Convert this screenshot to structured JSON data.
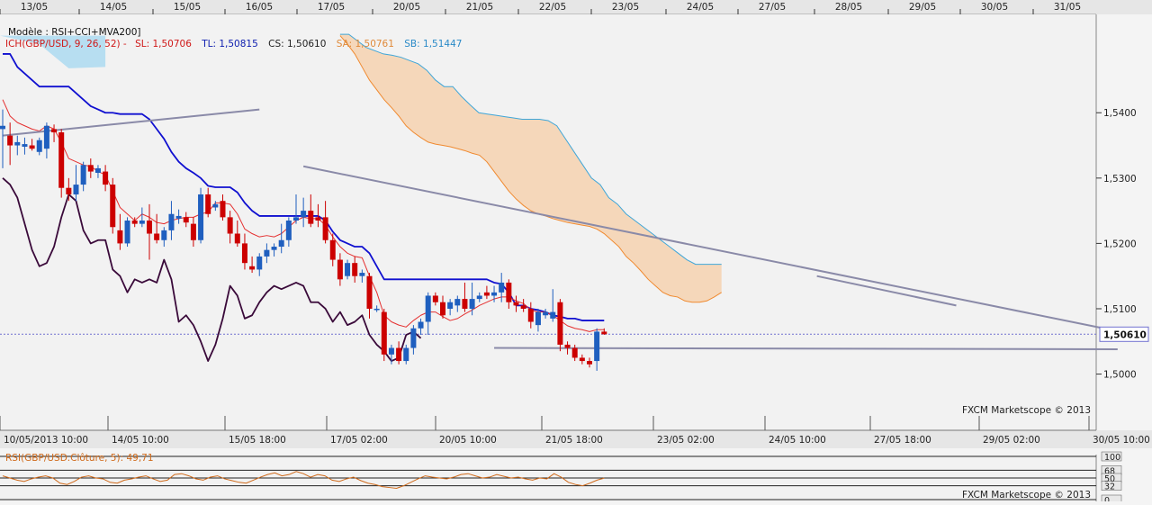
{
  "top_dates": [
    "13/05",
    "14/05",
    "15/05",
    "16/05",
    "17/05",
    "20/05",
    "21/05",
    "22/05",
    "23/05",
    "24/05",
    "27/05",
    "28/05",
    "29/05",
    "30/05",
    "31/05"
  ],
  "legend": {
    "model": "Modèle : RSI+CCI+MVA200]",
    "ich_label": "ICH(GBP/USD, 9, 26, 52) -",
    "sl": "SL: 1,50706",
    "tl": "TL: 1,50815",
    "cs": "CS: 1,50610",
    "sa": "SA: 1,50761",
    "sb": "SB: 1,51447"
  },
  "price_axis_labels": [
    "1,5400",
    "1,5300",
    "1,5200",
    "1,5100",
    "1,5000"
  ],
  "current_price_label": "1,50610",
  "bottom_dates": [
    "10/05/2013 10:00",
    "14/05 10:00",
    "15/05 18:00",
    "17/05 02:00",
    "20/05 10:00",
    "21/05 18:00",
    "23/05 02:00",
    "24/05 10:00",
    "27/05 18:00",
    "29/05 02:00",
    "30/05 10:00"
  ],
  "watermark": "FXCM Marketscope © 2013",
  "rsi_panel": {
    "label": "RSI(GBP/USD.Clôture, 5): 49,71",
    "axis_labels": [
      "100",
      "68",
      "50",
      "32",
      "0"
    ],
    "watermark": "FXCM Marketscope © 2013"
  },
  "colors": {
    "bull": "#1f5fbf",
    "bear": "#cc0000",
    "tenkan": "#e53030",
    "kijun": "#1010d0",
    "chikou": "#3a0a3a",
    "cloud": "#f5d4b4",
    "senkou_b": "#3fa6d8",
    "senkou_a": "#f08a30",
    "trend": "#8a8aa8",
    "rsi": "#d06a1a"
  },
  "chart_data": {
    "type": "candlestick",
    "symbol": "GBP/USD",
    "ylim": [
      1.4925,
      1.5545
    ],
    "y_ticks": [
      1.5,
      1.51,
      1.52,
      1.53,
      1.54
    ],
    "current_price": 1.5061,
    "candles": [
      {
        "o": 1.5375,
        "h": 1.5405,
        "l": 1.5315,
        "c": 1.538
      },
      {
        "o": 1.5365,
        "h": 1.5385,
        "l": 1.532,
        "c": 1.535
      },
      {
        "o": 1.535,
        "h": 1.5365,
        "l": 1.5335,
        "c": 1.5355
      },
      {
        "o": 1.5348,
        "h": 1.5362,
        "l": 1.5336,
        "c": 1.5352
      },
      {
        "o": 1.535,
        "h": 1.536,
        "l": 1.5342,
        "c": 1.5345
      },
      {
        "o": 1.534,
        "h": 1.5362,
        "l": 1.5335,
        "c": 1.5358
      },
      {
        "o": 1.5345,
        "h": 1.5385,
        "l": 1.533,
        "c": 1.538
      },
      {
        "o": 1.5375,
        "h": 1.5382,
        "l": 1.5355,
        "c": 1.537
      },
      {
        "o": 1.537,
        "h": 1.5375,
        "l": 1.527,
        "c": 1.5285
      },
      {
        "o": 1.5285,
        "h": 1.53,
        "l": 1.5265,
        "c": 1.5275
      },
      {
        "o": 1.5275,
        "h": 1.532,
        "l": 1.5265,
        "c": 1.529
      },
      {
        "o": 1.529,
        "h": 1.5325,
        "l": 1.528,
        "c": 1.532
      },
      {
        "o": 1.532,
        "h": 1.533,
        "l": 1.53,
        "c": 1.531
      },
      {
        "o": 1.5308,
        "h": 1.532,
        "l": 1.53,
        "c": 1.5315
      },
      {
        "o": 1.531,
        "h": 1.532,
        "l": 1.528,
        "c": 1.529
      },
      {
        "o": 1.529,
        "h": 1.53,
        "l": 1.5215,
        "c": 1.5225
      },
      {
        "o": 1.522,
        "h": 1.5245,
        "l": 1.519,
        "c": 1.52
      },
      {
        "o": 1.52,
        "h": 1.524,
        "l": 1.5195,
        "c": 1.5235
      },
      {
        "o": 1.5235,
        "h": 1.524,
        "l": 1.5225,
        "c": 1.523
      },
      {
        "o": 1.523,
        "h": 1.5255,
        "l": 1.5225,
        "c": 1.5235
      },
      {
        "o": 1.5235,
        "h": 1.526,
        "l": 1.5175,
        "c": 1.5215
      },
      {
        "o": 1.5215,
        "h": 1.5245,
        "l": 1.52,
        "c": 1.5205
      },
      {
        "o": 1.5205,
        "h": 1.5225,
        "l": 1.5195,
        "c": 1.522
      },
      {
        "o": 1.522,
        "h": 1.5265,
        "l": 1.5205,
        "c": 1.5245
      },
      {
        "o": 1.5238,
        "h": 1.5252,
        "l": 1.523,
        "c": 1.5242
      },
      {
        "o": 1.524,
        "h": 1.5248,
        "l": 1.5225,
        "c": 1.5232
      },
      {
        "o": 1.523,
        "h": 1.524,
        "l": 1.5195,
        "c": 1.5205
      },
      {
        "o": 1.5205,
        "h": 1.5285,
        "l": 1.52,
        "c": 1.5275
      },
      {
        "o": 1.5275,
        "h": 1.5285,
        "l": 1.524,
        "c": 1.5245
      },
      {
        "o": 1.5255,
        "h": 1.5265,
        "l": 1.525,
        "c": 1.526
      },
      {
        "o": 1.5265,
        "h": 1.5275,
        "l": 1.5235,
        "c": 1.524
      },
      {
        "o": 1.524,
        "h": 1.525,
        "l": 1.52,
        "c": 1.5215
      },
      {
        "o": 1.5215,
        "h": 1.5235,
        "l": 1.5195,
        "c": 1.52
      },
      {
        "o": 1.52,
        "h": 1.5215,
        "l": 1.516,
        "c": 1.517
      },
      {
        "o": 1.5165,
        "h": 1.518,
        "l": 1.5155,
        "c": 1.516
      },
      {
        "o": 1.516,
        "h": 1.5185,
        "l": 1.515,
        "c": 1.518
      },
      {
        "o": 1.518,
        "h": 1.52,
        "l": 1.517,
        "c": 1.519
      },
      {
        "o": 1.519,
        "h": 1.52,
        "l": 1.518,
        "c": 1.5195
      },
      {
        "o": 1.5195,
        "h": 1.523,
        "l": 1.5185,
        "c": 1.5205
      },
      {
        "o": 1.5205,
        "h": 1.524,
        "l": 1.5195,
        "c": 1.5235
      },
      {
        "o": 1.5235,
        "h": 1.5275,
        "l": 1.523,
        "c": 1.524
      },
      {
        "o": 1.524,
        "h": 1.527,
        "l": 1.5225,
        "c": 1.525
      },
      {
        "o": 1.525,
        "h": 1.5275,
        "l": 1.5225,
        "c": 1.523
      },
      {
        "o": 1.524,
        "h": 1.526,
        "l": 1.5225,
        "c": 1.5235
      },
      {
        "o": 1.524,
        "h": 1.5265,
        "l": 1.52,
        "c": 1.5205
      },
      {
        "o": 1.5205,
        "h": 1.5215,
        "l": 1.5165,
        "c": 1.5175
      },
      {
        "o": 1.5175,
        "h": 1.5185,
        "l": 1.5135,
        "c": 1.5145
      },
      {
        "o": 1.515,
        "h": 1.5175,
        "l": 1.5145,
        "c": 1.517
      },
      {
        "o": 1.517,
        "h": 1.518,
        "l": 1.514,
        "c": 1.515
      },
      {
        "o": 1.515,
        "h": 1.516,
        "l": 1.514,
        "c": 1.5155
      },
      {
        "o": 1.515,
        "h": 1.5155,
        "l": 1.5085,
        "c": 1.51
      },
      {
        "o": 1.51,
        "h": 1.5105,
        "l": 1.5095,
        "c": 1.51
      },
      {
        "o": 1.5095,
        "h": 1.51,
        "l": 1.502,
        "c": 1.503
      },
      {
        "o": 1.503,
        "h": 1.5045,
        "l": 1.5015,
        "c": 1.504
      },
      {
        "o": 1.504,
        "h": 1.505,
        "l": 1.5015,
        "c": 1.502
      },
      {
        "o": 1.502,
        "h": 1.5045,
        "l": 1.5015,
        "c": 1.504
      },
      {
        "o": 1.504,
        "h": 1.5075,
        "l": 1.503,
        "c": 1.507
      },
      {
        "o": 1.507,
        "h": 1.5085,
        "l": 1.506,
        "c": 1.508
      },
      {
        "o": 1.508,
        "h": 1.5125,
        "l": 1.506,
        "c": 1.512
      },
      {
        "o": 1.512,
        "h": 1.5125,
        "l": 1.5105,
        "c": 1.511
      },
      {
        "o": 1.511,
        "h": 1.512,
        "l": 1.5085,
        "c": 1.509
      },
      {
        "o": 1.51,
        "h": 1.5115,
        "l": 1.509,
        "c": 1.511
      },
      {
        "o": 1.5105,
        "h": 1.512,
        "l": 1.5095,
        "c": 1.5115
      },
      {
        "o": 1.5115,
        "h": 1.514,
        "l": 1.5095,
        "c": 1.51
      },
      {
        "o": 1.51,
        "h": 1.514,
        "l": 1.509,
        "c": 1.5115
      },
      {
        "o": 1.5115,
        "h": 1.5125,
        "l": 1.511,
        "c": 1.512
      },
      {
        "o": 1.5125,
        "h": 1.5135,
        "l": 1.5115,
        "c": 1.512
      },
      {
        "o": 1.512,
        "h": 1.5135,
        "l": 1.511,
        "c": 1.5125
      },
      {
        "o": 1.5125,
        "h": 1.5155,
        "l": 1.511,
        "c": 1.514
      },
      {
        "o": 1.514,
        "h": 1.5145,
        "l": 1.51,
        "c": 1.511
      },
      {
        "o": 1.511,
        "h": 1.512,
        "l": 1.5095,
        "c": 1.5105
      },
      {
        "o": 1.5105,
        "h": 1.5115,
        "l": 1.5095,
        "c": 1.51
      },
      {
        "o": 1.51,
        "h": 1.511,
        "l": 1.507,
        "c": 1.508
      },
      {
        "o": 1.5075,
        "h": 1.51,
        "l": 1.5065,
        "c": 1.5095
      },
      {
        "o": 1.509,
        "h": 1.51,
        "l": 1.5085,
        "c": 1.5095
      },
      {
        "o": 1.5085,
        "h": 1.513,
        "l": 1.508,
        "c": 1.5095
      },
      {
        "o": 1.511,
        "h": 1.5115,
        "l": 1.5035,
        "c": 1.5045
      },
      {
        "o": 1.5045,
        "h": 1.505,
        "l": 1.503,
        "c": 1.504
      },
      {
        "o": 1.504,
        "h": 1.5045,
        "l": 1.502,
        "c": 1.5025
      },
      {
        "o": 1.5025,
        "h": 1.503,
        "l": 1.5015,
        "c": 1.502
      },
      {
        "o": 1.502,
        "h": 1.5025,
        "l": 1.501,
        "c": 1.5015
      },
      {
        "o": 1.502,
        "h": 1.507,
        "l": 1.5005,
        "c": 1.5065
      },
      {
        "o": 1.5065,
        "h": 1.507,
        "l": 1.506,
        "c": 1.5061
      }
    ],
    "tenkan_sen": [
      1.542,
      1.5395,
      1.5385,
      1.538,
      1.5375,
      1.5372,
      1.538,
      1.5375,
      1.5355,
      1.533,
      1.5325,
      1.532,
      1.5318,
      1.531,
      1.5305,
      1.528,
      1.5255,
      1.5245,
      1.5235,
      1.5245,
      1.524,
      1.5232,
      1.523,
      1.5235,
      1.5238,
      1.524,
      1.524,
      1.5245,
      1.5248,
      1.5262,
      1.5262,
      1.526,
      1.5245,
      1.5222,
      1.5215,
      1.521,
      1.5212,
      1.521,
      1.5215,
      1.5225,
      1.5235,
      1.524,
      1.5238,
      1.5238,
      1.5228,
      1.521,
      1.5195,
      1.5185,
      1.518,
      1.5178,
      1.515,
      1.5125,
      1.509,
      1.508,
      1.5075,
      1.5072,
      1.5082,
      1.509,
      1.5095,
      1.5095,
      1.5088,
      1.5082,
      1.5085,
      1.5092,
      1.5098,
      1.5105,
      1.511,
      1.5115,
      1.5118,
      1.5118,
      1.5112,
      1.5108,
      1.5098,
      1.5095,
      1.5095,
      1.509,
      1.5082,
      1.5074,
      1.507,
      1.5068,
      1.5065,
      1.5068,
      1.5068
    ],
    "kijun_sen": [
      1.549,
      1.549,
      1.547,
      1.546,
      1.545,
      1.544,
      1.544,
      1.544,
      1.544,
      1.544,
      1.543,
      1.542,
      1.541,
      1.5405,
      1.54,
      1.54,
      1.5398,
      1.5398,
      1.5398,
      1.5398,
      1.539,
      1.5375,
      1.536,
      1.534,
      1.5325,
      1.5315,
      1.5308,
      1.53,
      1.5288,
      1.5286,
      1.5286,
      1.5286,
      1.5278,
      1.5262,
      1.525,
      1.5242,
      1.5242,
      1.5242,
      1.5242,
      1.5242,
      1.5242,
      1.5242,
      1.5242,
      1.5242,
      1.5235,
      1.5218,
      1.5205,
      1.52,
      1.5195,
      1.5195,
      1.5185,
      1.5165,
      1.5145,
      1.5145,
      1.5145,
      1.5145,
      1.5145,
      1.5145,
      1.5145,
      1.5145,
      1.5145,
      1.5145,
      1.5145,
      1.5145,
      1.5145,
      1.5145,
      1.5145,
      1.514,
      1.5138,
      1.5125,
      1.5105,
      1.5105,
      1.51,
      1.5098,
      1.5095,
      1.509,
      1.5088,
      1.5085,
      1.5085,
      1.5082,
      1.5082,
      1.5082,
      1.5082
    ],
    "chikou_span": [
      1.53,
      1.529,
      1.527,
      1.523,
      1.519,
      1.5165,
      1.517,
      1.5195,
      1.524,
      1.5275,
      1.5265,
      1.522,
      1.52,
      1.5205,
      1.5205,
      1.516,
      1.515,
      1.5125,
      1.5145,
      1.514,
      1.5145,
      1.514,
      1.5175,
      1.5145,
      1.508,
      1.509,
      1.5075,
      1.505,
      1.502,
      1.5045,
      1.5085,
      1.5135,
      1.512,
      1.5085,
      1.509,
      1.511,
      1.5125,
      1.5135,
      1.513,
      1.5135,
      1.514,
      1.5135,
      1.511,
      1.511,
      1.51,
      1.508,
      1.5095,
      1.5075,
      1.508,
      1.509,
      1.506,
      1.5045,
      1.5035,
      1.502,
      1.5025,
      1.506,
      1.5065,
      1.5055
    ],
    "senkou_a": [
      1.5518,
      1.5505,
      1.549,
      1.547,
      1.545,
      1.5435,
      1.542,
      1.5408,
      1.5395,
      1.538,
      1.537,
      1.5362,
      1.5355,
      1.5352,
      1.535,
      1.5348,
      1.5345,
      1.5342,
      1.5338,
      1.5335,
      1.5325,
      1.531,
      1.5295,
      1.528,
      1.5268,
      1.5258,
      1.525,
      1.5245,
      1.5242,
      1.5238,
      1.5235,
      1.5232,
      1.523,
      1.5228,
      1.5226,
      1.5222,
      1.5215,
      1.5205,
      1.5195,
      1.518,
      1.517,
      1.5158,
      1.5145,
      1.5135,
      1.5125,
      1.512,
      1.5118,
      1.5112,
      1.511,
      1.511,
      1.5112,
      1.5118,
      1.5125
    ],
    "senkou_b": [
      1.552,
      1.552,
      1.551,
      1.55,
      1.5495,
      1.549,
      1.5488,
      1.5485,
      1.548,
      1.5475,
      1.5465,
      1.545,
      1.544,
      1.544,
      1.5425,
      1.5412,
      1.54,
      1.5398,
      1.5396,
      1.5394,
      1.5392,
      1.539,
      1.539,
      1.539,
      1.5388,
      1.538,
      1.536,
      1.534,
      1.532,
      1.53,
      1.529,
      1.527,
      1.526,
      1.5245,
      1.5235,
      1.5225,
      1.5215,
      1.5205,
      1.5195,
      1.5185,
      1.5175,
      1.5168,
      1.5168,
      1.5168,
      1.5168
    ],
    "trendlines": [
      {
        "from": [
          0,
          1.5365
        ],
        "to": [
          35,
          1.5405
        ]
      },
      {
        "from": [
          41,
          1.5318
        ],
        "to": [
          151,
          1.5068
        ]
      },
      {
        "from": [
          67,
          1.504
        ],
        "to": [
          152,
          1.5038
        ]
      },
      {
        "from": [
          111,
          1.515
        ],
        "to": [
          130,
          1.5105
        ]
      }
    ],
    "rsi": {
      "ylim": [
        0,
        100
      ],
      "levels": [
        100,
        68,
        50,
        32,
        0
      ],
      "values": [
        55,
        50,
        45,
        42,
        48,
        52,
        55,
        50,
        38,
        35,
        42,
        52,
        55,
        50,
        48,
        40,
        38,
        45,
        48,
        52,
        55,
        48,
        42,
        45,
        58,
        60,
        55,
        48,
        45,
        52,
        55,
        48,
        44,
        40,
        38,
        45,
        52,
        58,
        62,
        55,
        58,
        65,
        60,
        52,
        58,
        55,
        45,
        42,
        48,
        52,
        44,
        38,
        35,
        30,
        28,
        26,
        32,
        40,
        48,
        55,
        52,
        50,
        48,
        52,
        58,
        60,
        55,
        50,
        52,
        58,
        54,
        50,
        52,
        48,
        45,
        50,
        48,
        60,
        52,
        40,
        35,
        32,
        38,
        45,
        49.71
      ],
      "last_value": 49.71
    }
  }
}
